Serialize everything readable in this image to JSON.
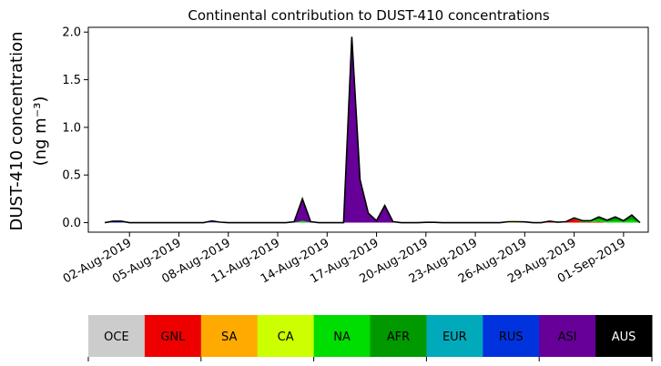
{
  "chart_data": {
    "type": "area",
    "title": "Continental contribution to DUST-410 concentrations",
    "ylabel_line1": "DUST-410 concentration",
    "ylabel_line2": "(ng m⁻³)",
    "xlabel": "",
    "ylim": [
      -0.1,
      2.05
    ],
    "yticks": [
      "0.0",
      "0.5",
      "1.0",
      "1.5",
      "2.0"
    ],
    "ytick_values": [
      0,
      0.5,
      1.0,
      1.5,
      2.0
    ],
    "xticks": [
      "02-Aug-2019",
      "05-Aug-2019",
      "08-Aug-2019",
      "11-Aug-2019",
      "14-Aug-2019",
      "17-Aug-2019",
      "20-Aug-2019",
      "23-Aug-2019",
      "26-Aug-2019",
      "29-Aug-2019",
      "01-Sep-2019"
    ],
    "xtick_days": [
      2,
      5,
      8,
      11,
      14,
      17,
      20,
      23,
      26,
      29,
      32
    ],
    "xlim_days": [
      -0.5,
      33.5
    ],
    "x_days": [
      0.5,
      1,
      1.5,
      2,
      2.5,
      3,
      3.5,
      4,
      4.5,
      5,
      5.5,
      6,
      6.5,
      7,
      7.5,
      8,
      8.5,
      9,
      9.5,
      10,
      10.5,
      11,
      11.5,
      12,
      12.5,
      13,
      13.5,
      14,
      14.5,
      15,
      15.5,
      16,
      16.5,
      17,
      17.5,
      18,
      18.5,
      19,
      19.5,
      20,
      20.5,
      21,
      21.5,
      22,
      22.5,
      23,
      23.5,
      24,
      24.5,
      25,
      25.5,
      26,
      26.5,
      27,
      27.5,
      28,
      28.5,
      29,
      29.5,
      30,
      30.5,
      31,
      31.5,
      32,
      32.5,
      33
    ],
    "series": [
      {
        "name": "OCE",
        "color": "#cccccc",
        "values": [
          0,
          0,
          0,
          0,
          0,
          0,
          0,
          0,
          0,
          0,
          0,
          0,
          0,
          0,
          0,
          0,
          0,
          0,
          0,
          0,
          0,
          0,
          0,
          0,
          0,
          0,
          0,
          0,
          0,
          0,
          0,
          0,
          0,
          0,
          0,
          0,
          0,
          0,
          0,
          0,
          0,
          0,
          0,
          0,
          0,
          0,
          0,
          0,
          0,
          0,
          0,
          0,
          0,
          0,
          0,
          0,
          0,
          0,
          0,
          0,
          0,
          0,
          0,
          0,
          0,
          0
        ]
      },
      {
        "name": "GNL",
        "color": "#ee0000",
        "values": [
          0,
          0,
          0,
          0,
          0,
          0,
          0,
          0,
          0,
          0,
          0,
          0,
          0,
          0,
          0,
          0,
          0,
          0,
          0,
          0,
          0,
          0,
          0,
          0,
          0,
          0,
          0,
          0,
          0,
          0,
          0,
          0,
          0,
          0,
          0,
          0,
          0,
          0,
          0,
          0,
          0,
          0,
          0,
          0,
          0,
          0,
          0,
          0,
          0,
          0,
          0,
          0,
          0,
          0,
          0.01,
          0.005,
          0.01,
          0.04,
          0.005,
          0.005,
          0.01,
          0,
          0,
          0,
          0,
          0
        ]
      },
      {
        "name": "SA",
        "color": "#ffaa00",
        "values": [
          0,
          0,
          0,
          0,
          0,
          0,
          0,
          0,
          0,
          0,
          0,
          0,
          0,
          0,
          0,
          0,
          0,
          0,
          0,
          0,
          0,
          0,
          0,
          0,
          0,
          0,
          0,
          0,
          0,
          0,
          0,
          0,
          0,
          0,
          0,
          0,
          0,
          0,
          0,
          0,
          0,
          0,
          0,
          0,
          0,
          0,
          0,
          0,
          0,
          0,
          0,
          0,
          0,
          0,
          0,
          0,
          0,
          0,
          0,
          0,
          0,
          0,
          0,
          0,
          0,
          0
        ]
      },
      {
        "name": "CA",
        "color": "#ccff00",
        "values": [
          0,
          0,
          0,
          0,
          0,
          0,
          0,
          0,
          0,
          0,
          0,
          0,
          0,
          0,
          0,
          0,
          0,
          0,
          0,
          0,
          0,
          0,
          0,
          0,
          0,
          0,
          0,
          0,
          0,
          0,
          0,
          0,
          0,
          0,
          0,
          0,
          0,
          0,
          0,
          0,
          0,
          0,
          0,
          0,
          0,
          0,
          0,
          0,
          0,
          0.005,
          0.005,
          0.005,
          0,
          0,
          0,
          0,
          0,
          0,
          0,
          0,
          0,
          0,
          0,
          0,
          0,
          0
        ]
      },
      {
        "name": "NA",
        "color": "#00dd00",
        "values": [
          0,
          0,
          0,
          0,
          0,
          0,
          0,
          0,
          0,
          0,
          0,
          0,
          0,
          0.003,
          0,
          0,
          0,
          0,
          0,
          0,
          0,
          0,
          0,
          0,
          0.02,
          0,
          0,
          0,
          0,
          0,
          0,
          0,
          0,
          0,
          0,
          0,
          0,
          0,
          0,
          0.003,
          0.003,
          0,
          0,
          0,
          0,
          0,
          0,
          0,
          0,
          0.005,
          0.005,
          0.003,
          0,
          0,
          0,
          0,
          0,
          0.01,
          0.015,
          0.01,
          0.02,
          0.01,
          0.02,
          0.01,
          0.03,
          0
        ]
      },
      {
        "name": "AFR",
        "color": "#009900",
        "values": [
          0,
          0,
          0,
          0,
          0,
          0,
          0,
          0,
          0,
          0,
          0,
          0,
          0,
          0,
          0,
          0,
          0,
          0,
          0,
          0,
          0,
          0,
          0,
          0,
          0,
          0,
          0,
          0,
          0,
          0,
          0,
          0,
          0,
          0,
          0,
          0,
          0,
          0,
          0,
          0,
          0,
          0,
          0,
          0,
          0,
          0,
          0,
          0,
          0,
          0,
          0,
          0,
          0,
          0,
          0.005,
          0,
          0,
          0,
          0,
          0.005,
          0.03,
          0.015,
          0.04,
          0.01,
          0.05,
          0
        ]
      },
      {
        "name": "EUR",
        "color": "#00aabb",
        "values": [
          0,
          0,
          0,
          0,
          0,
          0,
          0,
          0,
          0,
          0,
          0,
          0,
          0,
          0,
          0,
          0,
          0,
          0,
          0,
          0,
          0,
          0,
          0,
          0,
          0,
          0,
          0,
          0,
          0,
          0,
          0,
          0,
          0,
          0,
          0,
          0,
          0,
          0,
          0,
          0,
          0,
          0,
          0,
          0,
          0,
          0,
          0,
          0,
          0,
          0,
          0,
          0,
          0,
          0,
          0,
          0,
          0,
          0,
          0,
          0,
          0,
          0,
          0,
          0,
          0,
          0
        ]
      },
      {
        "name": "RUS",
        "color": "#0033dd",
        "values": [
          0,
          0.005,
          0.005,
          0,
          0,
          0,
          0,
          0,
          0,
          0,
          0,
          0,
          0,
          0.005,
          0,
          0,
          0,
          0,
          0,
          0,
          0,
          0,
          0,
          0,
          0,
          0,
          0,
          0,
          0,
          0,
          0,
          0,
          0,
          0,
          0,
          0,
          0,
          0,
          0,
          0,
          0,
          0,
          0,
          0,
          0,
          0,
          0,
          0,
          0,
          0,
          0,
          0,
          0,
          0,
          0,
          0,
          0,
          0,
          0,
          0,
          0,
          0,
          0,
          0,
          0,
          0
        ]
      },
      {
        "name": "ASI",
        "color": "#660099",
        "values": [
          0,
          0.01,
          0.01,
          0,
          0,
          0,
          0,
          0,
          0,
          0,
          0,
          0,
          0,
          0.01,
          0.005,
          0,
          0,
          0,
          0,
          0,
          0,
          0,
          0,
          0.01,
          0.23,
          0.01,
          0,
          0,
          0,
          0,
          1.95,
          0.45,
          0.1,
          0.02,
          0.18,
          0.01,
          0,
          0,
          0,
          0,
          0,
          0,
          0,
          0,
          0,
          0,
          0,
          0,
          0,
          0,
          0,
          0,
          0,
          0,
          0,
          0,
          0,
          0,
          0,
          0,
          0,
          0,
          0,
          0,
          0,
          0
        ]
      },
      {
        "name": "AUS",
        "color": "#000000",
        "values": [
          0,
          0,
          0,
          0,
          0,
          0,
          0,
          0,
          0,
          0,
          0,
          0,
          0,
          0,
          0,
          0,
          0,
          0,
          0,
          0,
          0,
          0,
          0,
          0,
          0,
          0,
          0,
          0,
          0,
          0,
          0,
          0,
          0,
          0,
          0,
          0,
          0,
          0,
          0,
          0,
          0,
          0,
          0,
          0,
          0,
          0,
          0,
          0,
          0,
          0,
          0,
          0,
          0,
          0,
          0,
          0,
          0,
          0,
          0,
          0,
          0,
          0,
          0,
          0,
          0,
          0
        ]
      }
    ]
  },
  "legend": [
    {
      "label": "OCE",
      "color": "#cccccc",
      "text_color": "#000000"
    },
    {
      "label": "GNL",
      "color": "#ee0000",
      "text_color": "#000000"
    },
    {
      "label": "SA",
      "color": "#ffaa00",
      "text_color": "#000000"
    },
    {
      "label": "CA",
      "color": "#ccff00",
      "text_color": "#000000"
    },
    {
      "label": "NA",
      "color": "#00dd00",
      "text_color": "#000000"
    },
    {
      "label": "AFR",
      "color": "#009900",
      "text_color": "#000000"
    },
    {
      "label": "EUR",
      "color": "#00aabb",
      "text_color": "#000000"
    },
    {
      "label": "RUS",
      "color": "#0033dd",
      "text_color": "#000000"
    },
    {
      "label": "ASI",
      "color": "#660099",
      "text_color": "#000000"
    },
    {
      "label": "AUS",
      "color": "#000000",
      "text_color": "#ffffff"
    }
  ]
}
